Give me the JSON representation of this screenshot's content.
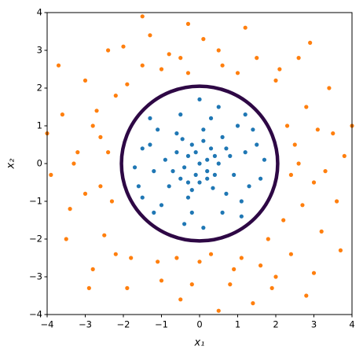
{
  "chart_data": {
    "type": "scatter",
    "xlabel": "x₁",
    "ylabel": "x₂",
    "xlim": [
      -4,
      4
    ],
    "ylim": [
      -4,
      4
    ],
    "xticks": [
      {
        "value": -4,
        "label": "−4"
      },
      {
        "value": -3,
        "label": "−3"
      },
      {
        "value": -2,
        "label": "−2"
      },
      {
        "value": -1,
        "label": "−1"
      },
      0,
      1,
      2,
      3,
      4
    ],
    "yticks": [
      {
        "value": -4,
        "label": "−4"
      },
      {
        "value": -3,
        "label": "−3"
      },
      {
        "value": -2,
        "label": "−2"
      },
      {
        "value": -1,
        "label": "−1"
      },
      0,
      1,
      2,
      3,
      4
    ],
    "series": [
      {
        "color": "#1f77b4",
        "x": [
          0,
          0.2,
          -0.3,
          0.4,
          -0.5,
          0.1,
          -0.2,
          0.8,
          -0.9,
          0.6,
          -0.6,
          0.7,
          -0.8,
          1.2,
          -1.2,
          0.3,
          -0.2,
          1.0,
          -1.1,
          1.1,
          -1.0,
          1.5,
          -1.5,
          0.5,
          -0.4,
          1.6,
          -1.6,
          0.2,
          -0.1,
          0.3,
          -0.4,
          0.5,
          0.0,
          -0.2,
          0.9,
          -0.7,
          0.1,
          -0.3,
          1.3,
          -1.3,
          0.6,
          -0.5,
          1.7,
          -1.7,
          0.0,
          0.1,
          1.2,
          -1.3,
          1.1,
          -1.2,
          0.4,
          -0.1,
          0.2,
          -0.3,
          0.7,
          -0.6,
          0.35,
          -0.45,
          1.4,
          -1.5
        ],
        "y": [
          0,
          0.1,
          0.2,
          -0.3,
          -0.4,
          0.6,
          -0.7,
          0.2,
          0.1,
          0.7,
          0.8,
          -0.8,
          -0.6,
          0.3,
          -0.2,
          1.2,
          -1.3,
          1.0,
          0.9,
          -1.0,
          -1.1,
          0.5,
          0.4,
          1.5,
          -1.6,
          -0.4,
          -0.6,
          -0.2,
          0.3,
          0.4,
          -0.1,
          0.0,
          -0.5,
          0.5,
          -0.3,
          -0.2,
          0.9,
          -0.9,
          -0.6,
          0.5,
          -1.3,
          1.3,
          0.1,
          -0.1,
          1.7,
          -1.7,
          1.3,
          1.2,
          -1.4,
          -1.3,
          0.2,
          -0.3,
          -0.4,
          -0.5,
          0.4,
          0.3,
          -0.65,
          0.65,
          0.9,
          -0.9
        ]
      },
      {
        "color": "#ff7f0e",
        "x": [
          2.5,
          3.0,
          2.8,
          3.5,
          2.2,
          3.2,
          2.0,
          1.5,
          0.5,
          -0.5,
          -1.5,
          -2.2,
          -2.8,
          -3.2,
          -2.6,
          -3.4,
          -2.5,
          -1.8,
          -1.0,
          0.0,
          0.8,
          1.6,
          2.4,
          3.0,
          3.6,
          3.8,
          3.4,
          2.6,
          1.2,
          -0.3,
          -1.3,
          -2.4,
          -3.0,
          -3.6,
          -3.9,
          -3.5,
          -2.8,
          -1.9,
          -0.5,
          0.5,
          1.9,
          2.8,
          2.3,
          2.4,
          -2.4,
          -2.3,
          1.0,
          -1.0,
          0.3,
          -0.6,
          2.7,
          -2.7,
          1.8,
          -1.9,
          3.1,
          -3.0,
          0.9,
          -0.8,
          2.1,
          -2.2,
          3.7,
          -3.7,
          1.4,
          -1.5,
          4.0,
          -4.0,
          2.9,
          -2.9,
          0.1,
          -0.2,
          3.3,
          -3.3,
          2.0,
          -2.0,
          1.1,
          -1.1,
          2.6,
          -2.6,
          0.6,
          -0.3
        ],
        "y": [
          0.5,
          -0.5,
          1.5,
          0.8,
          -1.5,
          -1.8,
          2.2,
          2.8,
          3.0,
          2.8,
          2.6,
          1.8,
          1.0,
          0.3,
          -0.6,
          -1.2,
          -1.9,
          -2.5,
          -3.1,
          -2.6,
          -3.2,
          -2.7,
          -2.4,
          -2.9,
          -1.0,
          0.2,
          2.0,
          2.8,
          3.6,
          3.7,
          3.4,
          3.0,
          2.2,
          1.3,
          -0.3,
          -2.0,
          -2.8,
          -3.3,
          -3.6,
          -3.9,
          -3.3,
          -3.5,
          1.0,
          -0.3,
          0.3,
          -1.0,
          2.4,
          2.5,
          -2.4,
          -2.5,
          -1.1,
          1.4,
          -2.0,
          2.1,
          0.9,
          -0.8,
          -2.8,
          2.9,
          2.5,
          -2.4,
          -2.3,
          2.6,
          -3.7,
          3.9,
          1.0,
          0.8,
          3.2,
          -3.3,
          3.3,
          -3.2,
          -0.2,
          0.0,
          -3.0,
          3.1,
          -2.5,
          -2.6,
          0.0,
          0.7,
          2.6,
          2.4
        ]
      }
    ],
    "boundary": {
      "center": [
        0,
        0
      ],
      "radius": 2.05,
      "color": "#2e0845"
    }
  }
}
